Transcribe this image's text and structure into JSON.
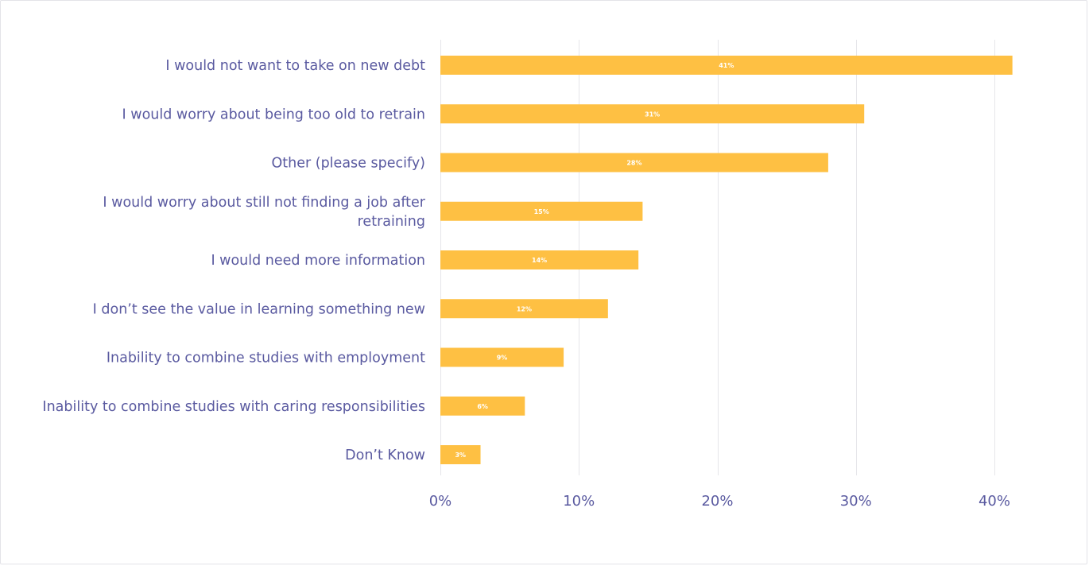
{
  "chart_data": {
    "type": "bar",
    "orientation": "horizontal",
    "categories": [
      "I would not want to take on new debt",
      "I would worry about being too old to retrain",
      "Other (please specify)",
      "I would worry about still not finding a job after retraining",
      "I would need more information",
      "I don’t see the value in learning something new",
      "Inability to combine studies with employment",
      "Inability to combine studies with caring responsibilities",
      "Don’t Know"
    ],
    "category_lines": [
      [
        "I would not want to take on new debt"
      ],
      [
        "I would worry about being too old to retrain"
      ],
      [
        "Other (please specify)"
      ],
      [
        "I would worry about still not finding a job after",
        "retraining"
      ],
      [
        "I would need more information"
      ],
      [
        "I don’t see the value in learning something new"
      ],
      [
        "Inability to combine studies with employment"
      ],
      [
        "Inability to combine studies with caring responsibilities"
      ],
      [
        "Don’t Know"
      ]
    ],
    "values": [
      41.3,
      30.6,
      28,
      14.6,
      14.3,
      12.1,
      8.9,
      6.1,
      2.9
    ],
    "data_labels": [
      "41%",
      "31%",
      "28%",
      "15%",
      "14%",
      "12%",
      "9%",
      "6%",
      "3%"
    ],
    "xlim": [
      0,
      40
    ],
    "xticks": [
      0,
      10,
      20,
      30,
      40
    ],
    "xtick_labels": [
      "0%",
      "10%",
      "20%",
      "30%",
      "40%"
    ],
    "grid": true,
    "title": "",
    "xlabel": "",
    "ylabel": "",
    "colors": {
      "bar": "#fec043",
      "text": "#5a5aa0",
      "grid": "#e6e6ea",
      "data_label": "#ffffff"
    }
  }
}
